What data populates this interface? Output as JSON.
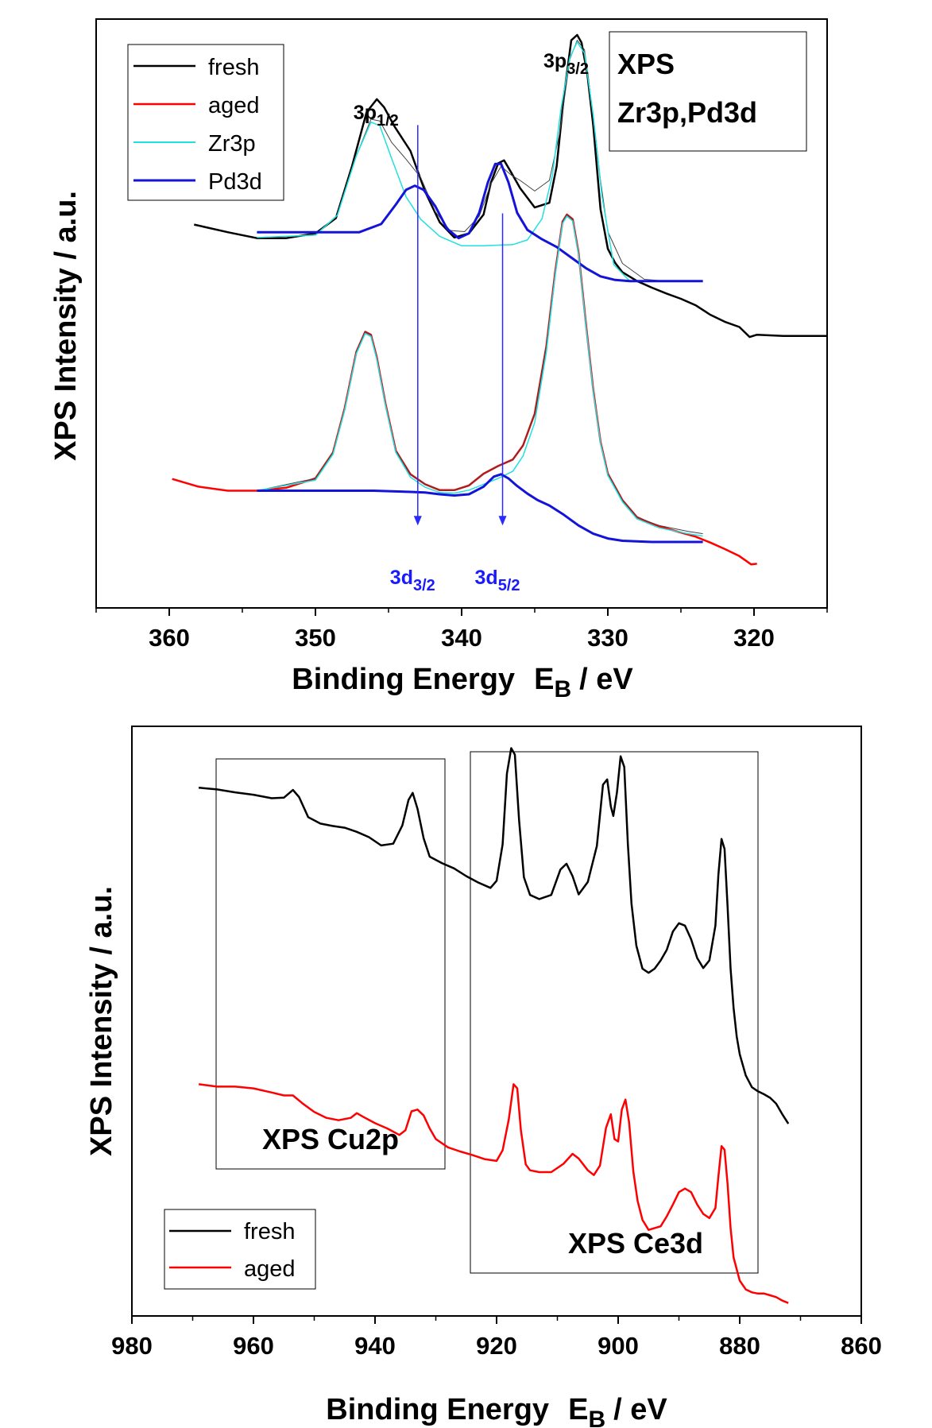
{
  "chart_data": [
    {
      "type": "line",
      "title": "",
      "xlabel": "Binding Energy",
      "xlabel_symbol": "E",
      "xlabel_sub": "B",
      "xlabel_unit": "/ eV",
      "ylabel": "XPS Intensity / a.u.",
      "xlim": [
        365,
        315
      ],
      "x_reversed": true,
      "xticks": [
        360,
        350,
        340,
        330,
        320
      ],
      "ylim": [
        0,
        100
      ],
      "y_ticks_shown": false,
      "grid": false,
      "legend": {
        "position": "top-left",
        "entries": [
          "fresh",
          "aged",
          "Zr3p",
          "Pd3d"
        ]
      },
      "box_label": [
        "XPS",
        "Zr3p,Pd3d"
      ],
      "peak_labels": [
        {
          "text": "3p",
          "sub": "1/2",
          "x": 345.5,
          "color": "#000000"
        },
        {
          "text": "3p",
          "sub": "3/2",
          "x": 332.5,
          "color": "#000000"
        },
        {
          "text": "3d",
          "sub": "3/2",
          "x": 343.0,
          "color": "#1a1aff"
        },
        {
          "text": "3d",
          "sub": "5/2",
          "x": 337.2,
          "color": "#1a1aff"
        }
      ],
      "colors": {
        "fresh": "#000000",
        "aged": "#ff0000",
        "Zr3p": "#22e0e0",
        "Pd3d": "#1414d8",
        "arrow": "#2a2aff"
      },
      "series": [
        {
          "name": "fresh",
          "color": "#000000",
          "x": [
            358.3,
            356,
            354,
            352,
            350,
            348.6,
            347.5,
            346.5,
            345.8,
            345.3,
            344.6,
            343.5,
            342.5,
            341.5,
            340.5,
            339.5,
            338.5,
            338.0,
            337.5,
            337.1,
            336.6,
            336.0,
            335.0,
            334.0,
            333.5,
            333.0,
            332.5,
            332.1,
            331.8,
            331.4,
            331.0,
            330.5,
            330.0,
            329.5,
            329.0,
            328.0,
            327.0,
            326.0,
            325.0,
            324.0,
            323.0,
            322.0,
            321.0,
            320.3,
            319.8,
            318,
            316,
            315
          ],
          "y": [
            65.1,
            63.8,
            62.8,
            62.8,
            63.6,
            66.2,
            75.0,
            84.2,
            86.4,
            85.0,
            81.8,
            77.6,
            70.7,
            65.5,
            62.9,
            63.6,
            66.8,
            72.2,
            75.5,
            76.0,
            73.9,
            71.3,
            68.0,
            68.8,
            75.0,
            87.0,
            96.4,
            97.3,
            96.0,
            90.7,
            82.0,
            67.7,
            61.0,
            58.6,
            57.0,
            55.5,
            54.4,
            53.4,
            52.5,
            51.4,
            49.8,
            48.6,
            47.7,
            46.0,
            46.4,
            46.2,
            46.2,
            46.2
          ]
        },
        {
          "name": "aged",
          "color": "#ff0000",
          "x": [
            359.8,
            358,
            356,
            354,
            352,
            350,
            348.8,
            348.0,
            347.2,
            346.6,
            346.2,
            345.8,
            345.2,
            344.5,
            343.5,
            342.5,
            341.5,
            340.5,
            339.5,
            338.5,
            337.5,
            336.5,
            335.8,
            335.0,
            334.2,
            333.6,
            333.1,
            332.8,
            332.4,
            332.0,
            331.5,
            331.0,
            330.5,
            330.0,
            329.0,
            328.0,
            327.0,
            326.0,
            325.0,
            324.0,
            323.0,
            322.0,
            321.0,
            320.2,
            319.8
          ],
          "y": [
            21.9,
            20.6,
            19.9,
            19.9,
            20.4,
            22.0,
            26.4,
            33.9,
            43.5,
            46.9,
            46.4,
            42.5,
            34.6,
            26.7,
            22.7,
            21.0,
            20.0,
            20.0,
            20.8,
            22.8,
            24.1,
            25.2,
            27.6,
            33.0,
            44.5,
            57.1,
            65.6,
            66.8,
            66.0,
            60.3,
            48.3,
            37.1,
            28.2,
            22.8,
            18.3,
            15.4,
            14.3,
            13.5,
            12.8,
            12.1,
            11.1,
            10.0,
            8.8,
            7.4,
            7.5
          ]
        },
        {
          "name": "fresh fit envelope",
          "color": "#444444",
          "x": [
            354,
            350,
            348.5,
            347.2,
            346.2,
            345.6,
            344.8,
            343.8,
            342.8,
            341.8,
            340.8,
            339.8,
            338.8,
            338.0,
            337.3,
            336.6,
            336.0,
            335.0,
            334.0,
            333.3,
            332.6,
            332.1,
            331.6,
            331.0,
            330.5,
            330.0,
            329.0,
            327.5,
            326.0,
            324.5,
            323.5
          ],
          "y": [
            62.9,
            63.3,
            66.7,
            76.8,
            83.0,
            82.7,
            79.1,
            76.2,
            73.1,
            67.3,
            64.1,
            63.9,
            66.5,
            72.0,
            75.0,
            73.5,
            72.6,
            70.8,
            72.6,
            80.6,
            93.2,
            96.4,
            94.8,
            83.6,
            72.6,
            63.9,
            58.5,
            55.8,
            55.5,
            55.5,
            55.5
          ]
        },
        {
          "name": "Zr3p",
          "color": "#22e0e0",
          "x": [
            354,
            350,
            348.5,
            347.2,
            346.2,
            345.6,
            344.8,
            343.8,
            342.8,
            341.5,
            340.0,
            338.5,
            337.5,
            336.5,
            335.5,
            334.5,
            333.8,
            333.2,
            332.6,
            332.1,
            331.6,
            331.0,
            330.4,
            329.6,
            328.5,
            327.0,
            325.5,
            323.5
          ],
          "y": [
            62.9,
            63.3,
            66.7,
            76.8,
            82.5,
            81.9,
            76.4,
            69.8,
            66.0,
            63.1,
            61.5,
            61.5,
            61.6,
            61.7,
            62.5,
            66.1,
            73.4,
            84.8,
            93.5,
            96.1,
            94.2,
            83.7,
            69.9,
            58.3,
            55.5,
            55.5,
            55.5,
            55.5
          ]
        },
        {
          "name": "Pd3d",
          "color": "#1414d8",
          "x": [
            354,
            350,
            347,
            345.5,
            344.5,
            343.8,
            343.2,
            342.6,
            341.8,
            341.0,
            340.2,
            339.5,
            338.8,
            338.2,
            337.7,
            337.3,
            336.8,
            336.2,
            335.5,
            334.5,
            333.5,
            332.5,
            331.5,
            330.5,
            329.5,
            328.5,
            327.0,
            325.0,
            323.5
          ],
          "y": [
            63.8,
            63.8,
            63.8,
            65.2,
            68.5,
            71.0,
            71.7,
            71.0,
            68.2,
            64.4,
            62.8,
            63.6,
            67.1,
            72.3,
            75.4,
            75.4,
            72.3,
            67.1,
            64.2,
            62.6,
            61.3,
            59.5,
            57.7,
            56.3,
            55.7,
            55.5,
            55.5,
            55.5,
            55.5
          ]
        },
        {
          "name": "aged fit envelope",
          "color": "#444444",
          "x": [
            354,
            350,
            348.8,
            348.0,
            347.2,
            346.6,
            346.2,
            345.8,
            345.2,
            344.5,
            343.5,
            342.5,
            341.5,
            340.5,
            339.5,
            338.5,
            337.5,
            336.5,
            335.8,
            335.0,
            334.2,
            333.6,
            333.1,
            332.8,
            332.4,
            332.0,
            331.5,
            331.0,
            330.5,
            330.0,
            329.0,
            328.0,
            326.5,
            324.5,
            323.5
          ],
          "y": [
            19.9,
            22.0,
            26.4,
            33.9,
            43.5,
            46.9,
            46.4,
            42.5,
            34.6,
            26.7,
            22.7,
            21.0,
            20.0,
            20.0,
            20.8,
            22.8,
            24.1,
            25.2,
            27.6,
            33.0,
            44.5,
            57.1,
            65.6,
            66.8,
            66.0,
            60.3,
            48.3,
            37.1,
            28.2,
            22.8,
            18.3,
            15.4,
            14.0,
            13.0,
            12.6
          ]
        },
        {
          "name": "aged Zr3p",
          "color": "#22e0e0",
          "x": [
            354,
            350,
            348.8,
            348.0,
            347.2,
            346.6,
            346.2,
            345.8,
            345.2,
            344.5,
            343.5,
            342.5,
            341.5,
            340.5,
            339.5,
            338.5,
            337.5,
            336.5,
            335.8,
            335.0,
            334.2,
            333.6,
            333.1,
            332.8,
            332.4,
            332.0,
            331.5,
            331.0,
            330.5,
            330.0,
            329.0,
            328.0,
            326.5,
            324.5,
            323.5
          ],
          "y": [
            19.9,
            21.7,
            26.1,
            33.6,
            43.2,
            46.6,
            46.1,
            42.2,
            34.3,
            26.4,
            22.2,
            20.5,
            19.6,
            19.5,
            20.0,
            21.0,
            22.0,
            23.2,
            25.8,
            31.5,
            43.5,
            56.6,
            65.3,
            66.5,
            65.7,
            60.0,
            48.0,
            36.8,
            28.0,
            22.5,
            18.0,
            15.1,
            13.6,
            12.6,
            12.2
          ]
        },
        {
          "name": "aged Pd3d",
          "color": "#1414d8",
          "x": [
            354,
            350,
            346,
            343.5,
            342.5,
            341.5,
            340.5,
            339.5,
            338.5,
            337.8,
            337.3,
            336.8,
            336.2,
            335.5,
            334.8,
            334.0,
            333.0,
            332.0,
            331.0,
            330.0,
            329.0,
            328.0,
            327.0,
            326.0,
            325.0,
            323.5
          ],
          "y": [
            19.9,
            19.9,
            19.9,
            19.7,
            19.6,
            19.3,
            19.1,
            19.3,
            20.6,
            22.3,
            22.7,
            22.0,
            20.7,
            19.4,
            18.3,
            17.4,
            15.8,
            14.0,
            12.6,
            11.8,
            11.4,
            11.3,
            11.2,
            11.2,
            11.2,
            11.2
          ]
        }
      ]
    },
    {
      "type": "line",
      "title": "",
      "xlabel": "Binding Energy",
      "xlabel_symbol": "E",
      "xlabel_sub": "B",
      "xlabel_unit": "/ eV",
      "ylabel": "XPS Intensity / a.u.",
      "xlim": [
        980,
        860
      ],
      "x_reversed": true,
      "xticks": [
        980,
        960,
        940,
        920,
        900,
        880,
        860
      ],
      "ylim": [
        0,
        100
      ],
      "y_ticks_shown": false,
      "grid": false,
      "legend": {
        "position": "bottom-left",
        "entries": [
          "fresh",
          "aged"
        ]
      },
      "box_labels": [
        "XPS Cu2p",
        "XPS Ce3d"
      ],
      "colors": {
        "fresh": "#000000",
        "aged": "#ff0000"
      },
      "series": [
        {
          "name": "fresh",
          "x": [
            969,
            966,
            963,
            960,
            957,
            955,
            953.5,
            952.5,
            951,
            949,
            947,
            945,
            943,
            941,
            939,
            937,
            935.5,
            934.5,
            933.8,
            933,
            932,
            931,
            929,
            927,
            925,
            923,
            921,
            920,
            919,
            918.3,
            917.6,
            917,
            916.3,
            915.5,
            914.5,
            913,
            911,
            909.5,
            908.5,
            907.5,
            906.5,
            905,
            903.5,
            902.5,
            901.8,
            901.2,
            900.8,
            900.2,
            899.6,
            899.0,
            898.4,
            897.8,
            897.0,
            896.0,
            895.0,
            894.0,
            893.0,
            892.0,
            891.0,
            890.0,
            889.0,
            888.0,
            887.0,
            886.0,
            885.0,
            884.0,
            883.5,
            883.0,
            882.5,
            882.0,
            881.5,
            881.0,
            880.5,
            880.0,
            879.0,
            878.0,
            877.0,
            876.0,
            875.0,
            874.0,
            873.0,
            872.0
          ],
          "y": [
            89.6,
            89.3,
            88.8,
            88.4,
            87.8,
            87.9,
            89.2,
            88.0,
            84.6,
            83.5,
            83.1,
            82.8,
            82.1,
            81.2,
            79.8,
            80.1,
            83.2,
            87.5,
            88.7,
            86.0,
            81.0,
            77.9,
            76.8,
            75.9,
            74.6,
            73.5,
            72.6,
            73.8,
            80.0,
            92.0,
            96.3,
            95.2,
            84.1,
            74.4,
            71.4,
            70.7,
            71.4,
            75.7,
            76.7,
            74.6,
            71.5,
            73.6,
            79.7,
            90.1,
            91.0,
            86.4,
            84.8,
            88.8,
            94.9,
            93.1,
            80.1,
            69.9,
            62.8,
            58.9,
            58.2,
            58.9,
            60.3,
            62.1,
            65.2,
            66.6,
            66.2,
            63.9,
            60.7,
            59.0,
            60.3,
            66.2,
            74.9,
            80.9,
            79.2,
            69.5,
            58.9,
            52.2,
            47.4,
            44.4,
            40.8,
            38.8,
            38.1,
            37.6,
            37.0,
            36.0,
            34.2,
            32.6
          ]
        },
        {
          "name": "aged",
          "x": [
            969,
            966,
            963,
            960,
            957,
            955,
            953.5,
            952,
            950,
            948,
            946,
            944,
            943,
            942,
            940,
            938,
            936,
            935,
            934,
            933,
            932,
            931,
            930,
            928,
            926,
            924,
            922,
            920,
            919,
            918,
            917.2,
            916.6,
            916,
            915.2,
            914.5,
            913,
            911,
            909,
            907.5,
            906.5,
            905,
            904,
            903,
            902,
            901.2,
            900.6,
            900,
            899.4,
            898.8,
            898.2,
            897.5,
            896.8,
            896,
            895,
            894,
            893,
            892,
            891,
            890,
            889,
            888,
            887,
            886,
            885,
            884,
            883.5,
            883,
            882.5,
            882,
            881.5,
            881,
            880,
            879,
            878,
            877,
            876,
            875,
            874,
            873,
            872
          ],
          "y": [
            39.3,
            38.9,
            38.9,
            38.6,
            37.9,
            37.4,
            37.4,
            36.1,
            34.6,
            33.6,
            33.2,
            33.6,
            34.4,
            33.8,
            32.7,
            31.8,
            30.7,
            31.5,
            34.7,
            35.0,
            34.0,
            31.8,
            30.0,
            28.6,
            27.9,
            27.3,
            26.6,
            26.3,
            28.1,
            33.3,
            39.3,
            38.6,
            31.5,
            25.7,
            24.7,
            24.4,
            24.4,
            25.8,
            27.5,
            26.7,
            24.7,
            23.9,
            25.5,
            31.9,
            34.2,
            30.0,
            29.6,
            35.0,
            36.7,
            32.8,
            24.5,
            19.5,
            16.3,
            14.6,
            14.9,
            15.2,
            16.9,
            18.9,
            21.0,
            21.6,
            21.0,
            18.9,
            17.3,
            16.6,
            18.3,
            23.7,
            28.8,
            28.2,
            22.4,
            14.9,
            9.9,
            6.0,
            4.5,
            4.0,
            3.8,
            3.8,
            3.5,
            3.2,
            2.6,
            2.2
          ]
        }
      ]
    }
  ]
}
